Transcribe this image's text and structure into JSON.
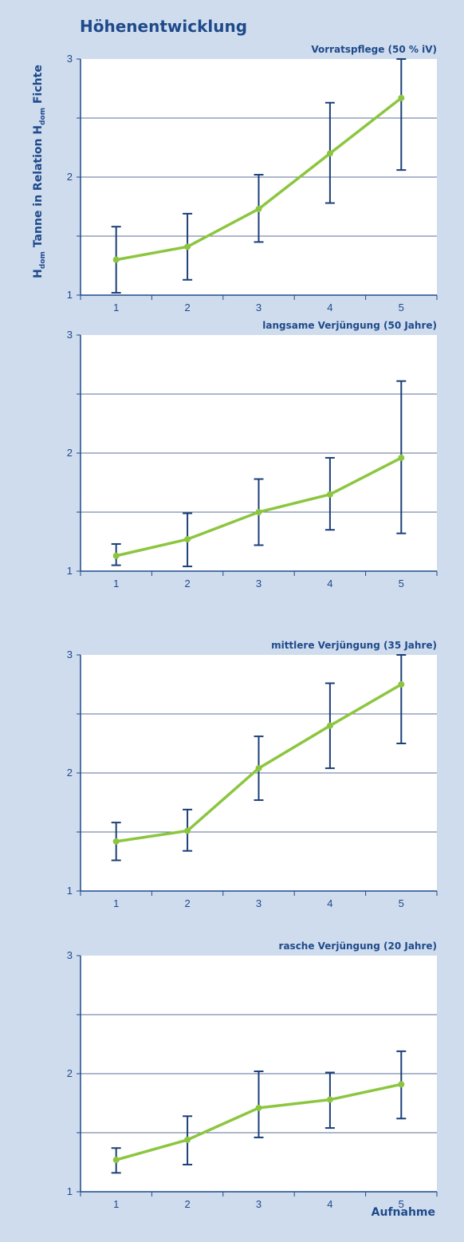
{
  "title": "Höhenentwicklung",
  "ylabel": {
    "p1": "H",
    "p1_sub": "dom",
    "p2": " Tanne in Relation H",
    "p2_sub": "dom",
    "p3": " Fichte"
  },
  "xlabel": "Aufnahme",
  "colors": {
    "background": "#cfdcee",
    "plot_area": "#ffffff",
    "axis": "#1f4a8a",
    "line": "#8cc63f",
    "errorbar": "#1b3f78"
  },
  "chart_data": [
    {
      "type": "line",
      "title": "Vorratspflege (50 % iV)",
      "x": [
        1,
        2,
        3,
        4,
        5
      ],
      "y": [
        1.3,
        1.41,
        1.73,
        2.2,
        2.67
      ],
      "err_low": [
        1.02,
        1.13,
        1.45,
        1.78,
        2.06
      ],
      "err_high": [
        1.58,
        1.69,
        2.02,
        2.63,
        3.0
      ],
      "xlim": [
        0.5,
        5.5
      ],
      "ylim": [
        1,
        3
      ],
      "yticks": [
        1,
        2,
        3
      ],
      "xticks": [
        1,
        2,
        3,
        4,
        5
      ],
      "grid": true
    },
    {
      "type": "line",
      "title": "langsame Verjüngung (50 Jahre)",
      "x": [
        1,
        2,
        3,
        4,
        5
      ],
      "y": [
        1.13,
        1.27,
        1.5,
        1.65,
        1.96
      ],
      "err_low": [
        1.05,
        1.04,
        1.22,
        1.35,
        1.32
      ],
      "err_high": [
        1.23,
        1.49,
        1.78,
        1.96,
        2.61
      ],
      "xlim": [
        0.5,
        5.5
      ],
      "ylim": [
        1,
        3
      ],
      "yticks": [
        1,
        2,
        3
      ],
      "xticks": [
        1,
        2,
        3,
        4,
        5
      ],
      "grid": true
    },
    {
      "type": "line",
      "title": "mittlere Verjüngung (35 Jahre)",
      "x": [
        1,
        2,
        3,
        4,
        5
      ],
      "y": [
        1.42,
        1.51,
        2.04,
        2.4,
        2.75
      ],
      "err_low": [
        1.26,
        1.34,
        1.77,
        2.04,
        2.25
      ],
      "err_high": [
        1.58,
        1.69,
        2.31,
        2.76,
        3.0
      ],
      "xlim": [
        0.5,
        5.5
      ],
      "ylim": [
        1,
        3
      ],
      "yticks": [
        1,
        2,
        3
      ],
      "xticks": [
        1,
        2,
        3,
        4,
        5
      ],
      "grid": true
    },
    {
      "type": "line",
      "title": "rasche Verjüngung (20 Jahre)",
      "x": [
        1,
        2,
        3,
        4,
        5
      ],
      "y": [
        1.27,
        1.44,
        1.71,
        1.78,
        1.91
      ],
      "err_low": [
        1.16,
        1.23,
        1.46,
        1.54,
        1.62
      ],
      "err_high": [
        1.37,
        1.64,
        2.02,
        2.01,
        2.19
      ],
      "xlim": [
        0.5,
        5.5
      ],
      "ylim": [
        1,
        3
      ],
      "yticks": [
        1,
        2,
        3
      ],
      "xticks": [
        1,
        2,
        3,
        4,
        5
      ],
      "grid": true
    }
  ]
}
